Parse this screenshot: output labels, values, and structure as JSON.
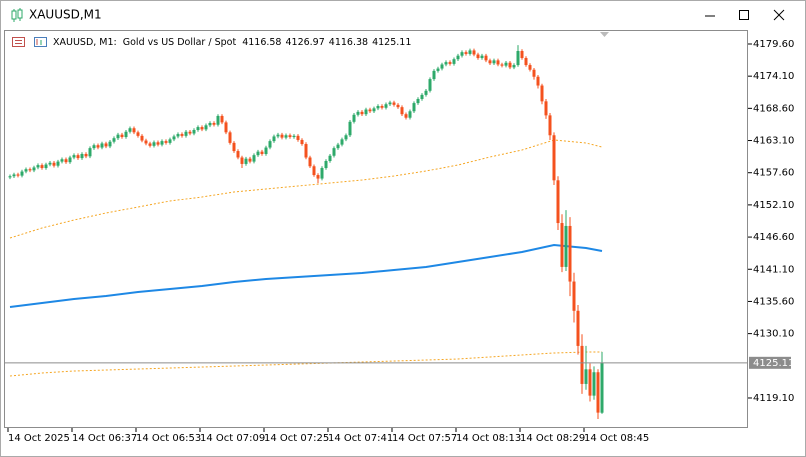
{
  "window": {
    "title": "XAUUSD,M1"
  },
  "chart_data": {
    "type": "candlestick",
    "symbol": "XAUUSD, M1:",
    "description": "Gold vs US Dollar / Spot",
    "up_color": "#2ea96a",
    "down_color": "#f4511e",
    "price_line_color": "#8c8c8c",
    "xlim": [
      -1.5,
      184.5
    ],
    "xticks": [
      {
        "value": 0,
        "label": "14 Oct 2025"
      },
      {
        "value": 16,
        "label": "14 Oct 06:37"
      },
      {
        "value": 32,
        "label": "14 Oct 06:53"
      },
      {
        "value": 48,
        "label": "14 Oct 07:09"
      },
      {
        "value": 64,
        "label": "14 Oct 07:25"
      },
      {
        "value": 80,
        "label": "14 Oct 07:41"
      },
      {
        "value": 96,
        "label": "14 Oct 07:57"
      },
      {
        "value": 112,
        "label": "14 Oct 08:13"
      },
      {
        "value": 128,
        "label": "14 Oct 08:29"
      },
      {
        "value": 144,
        "label": "14 Oct 08:45"
      }
    ],
    "ylim": [
      4113.97,
      4181.99
    ],
    "yticks": [
      {
        "value": 4179.6,
        "label": "4179.60"
      },
      {
        "value": 4174.1,
        "label": "4174.10"
      },
      {
        "value": 4168.6,
        "label": "4168.60"
      },
      {
        "value": 4163.1,
        "label": "4163.10"
      },
      {
        "value": 4157.6,
        "label": "4157.60"
      },
      {
        "value": 4152.1,
        "label": "4152.10"
      },
      {
        "value": 4146.6,
        "label": "4146.60"
      },
      {
        "value": 4141.1,
        "label": "4141.10"
      },
      {
        "value": 4135.6,
        "label": "4135.60"
      },
      {
        "value": 4130.1,
        "label": "4130.10"
      },
      {
        "value": 4119.1,
        "label": "4119.10"
      }
    ],
    "candles": [
      [
        4156.8,
        4157.3,
        4156.5,
        4157.0
      ],
      [
        4157.0,
        4157.6,
        4156.7,
        4157.3
      ],
      [
        4157.3,
        4157.6,
        4156.8,
        4157.1
      ],
      [
        4157.1,
        4158.1,
        4156.8,
        4157.8
      ],
      [
        4157.8,
        4158.5,
        4157.5,
        4158.2
      ],
      [
        4158.2,
        4158.5,
        4157.7,
        4158.0
      ],
      [
        4158.0,
        4158.8,
        4157.7,
        4158.5
      ],
      [
        4158.5,
        4159.2,
        4158.2,
        4158.9
      ],
      [
        4158.9,
        4159.2,
        4158.1,
        4158.4
      ],
      [
        4158.4,
        4159.3,
        4158.1,
        4159.0
      ],
      [
        4159.0,
        4159.6,
        4158.7,
        4159.3
      ],
      [
        4159.3,
        4159.6,
        4158.5,
        4158.8
      ],
      [
        4158.8,
        4159.8,
        4158.5,
        4159.5
      ],
      [
        4159.5,
        4160.2,
        4159.2,
        4159.9
      ],
      [
        4159.9,
        4160.2,
        4159.1,
        4159.4
      ],
      [
        4159.4,
        4160.5,
        4159.1,
        4160.2
      ],
      [
        4160.2,
        4160.9,
        4159.9,
        4160.6
      ],
      [
        4160.6,
        4160.9,
        4159.8,
        4160.1
      ],
      [
        4160.1,
        4161.1,
        4159.8,
        4160.8
      ],
      [
        4160.8,
        4161.1,
        4160.1,
        4160.4
      ],
      [
        4160.4,
        4162.1,
        4160.1,
        4161.8
      ],
      [
        4161.8,
        4162.6,
        4161.5,
        4162.3
      ],
      [
        4162.3,
        4162.6,
        4161.6,
        4161.9
      ],
      [
        4161.9,
        4162.9,
        4161.6,
        4162.6
      ],
      [
        4162.6,
        4162.9,
        4161.8,
        4162.1
      ],
      [
        4162.1,
        4163.2,
        4161.8,
        4162.9
      ],
      [
        4162.9,
        4163.8,
        4162.6,
        4163.5
      ],
      [
        4163.5,
        4164.4,
        4163.2,
        4164.1
      ],
      [
        4164.1,
        4164.4,
        4163.4,
        4163.7
      ],
      [
        4163.7,
        4164.9,
        4163.4,
        4164.6
      ],
      [
        4164.6,
        4165.5,
        4164.3,
        4165.2
      ],
      [
        4165.2,
        4165.5,
        4164.2,
        4164.5
      ],
      [
        4164.5,
        4164.8,
        4163.6,
        4163.9
      ],
      [
        4163.9,
        4164.2,
        4162.8,
        4163.1
      ],
      [
        4163.1,
        4163.4,
        4162.3,
        4162.6
      ],
      [
        4162.6,
        4162.9,
        4161.9,
        4162.2
      ],
      [
        4162.2,
        4163.1,
        4161.9,
        4162.8
      ],
      [
        4162.8,
        4163.1,
        4162.1,
        4162.4
      ],
      [
        4162.4,
        4163.3,
        4162.1,
        4163.0
      ],
      [
        4163.0,
        4163.3,
        4162.4,
        4162.7
      ],
      [
        4162.7,
        4163.6,
        4162.4,
        4163.3
      ],
      [
        4163.3,
        4164.1,
        4163.0,
        4163.8
      ],
      [
        4163.8,
        4164.5,
        4163.5,
        4164.2
      ],
      [
        4164.2,
        4164.5,
        4163.6,
        4163.9
      ],
      [
        4163.9,
        4164.9,
        4163.6,
        4164.6
      ],
      [
        4164.6,
        4164.9,
        4164.0,
        4164.3
      ],
      [
        4164.3,
        4165.2,
        4164.0,
        4164.9
      ],
      [
        4164.9,
        4165.7,
        4164.6,
        4165.4
      ],
      [
        4165.4,
        4165.7,
        4164.7,
        4165.0
      ],
      [
        4165.0,
        4166.0,
        4164.7,
        4165.7
      ],
      [
        4165.7,
        4166.4,
        4165.4,
        4166.1
      ],
      [
        4166.1,
        4166.4,
        4165.5,
        4165.8
      ],
      [
        4165.8,
        4167.6,
        4165.5,
        4167.3
      ],
      [
        4167.3,
        4167.6,
        4165.9,
        4166.2
      ],
      [
        4166.2,
        4166.5,
        4164.2,
        4164.5
      ],
      [
        4164.5,
        4164.8,
        4162.4,
        4162.7
      ],
      [
        4162.7,
        4163.0,
        4161.0,
        4161.3
      ],
      [
        4161.3,
        4161.6,
        4159.9,
        4160.2
      ],
      [
        4160.2,
        4160.5,
        4158.4,
        4159.1
      ],
      [
        4159.1,
        4160.3,
        4158.8,
        4160.0
      ],
      [
        4160.0,
        4160.3,
        4159.2,
        4159.5
      ],
      [
        4159.5,
        4160.9,
        4159.2,
        4160.6
      ],
      [
        4160.6,
        4161.5,
        4160.3,
        4161.2
      ],
      [
        4161.2,
        4161.5,
        4160.5,
        4160.8
      ],
      [
        4160.8,
        4162.2,
        4160.5,
        4161.9
      ],
      [
        4161.9,
        4163.3,
        4161.6,
        4163.0
      ],
      [
        4163.0,
        4164.1,
        4162.7,
        4163.8
      ],
      [
        4163.8,
        4164.4,
        4163.5,
        4164.1
      ],
      [
        4164.1,
        4164.4,
        4163.3,
        4163.6
      ],
      [
        4163.6,
        4164.3,
        4163.3,
        4164.0
      ],
      [
        4164.0,
        4164.3,
        4163.4,
        4163.7
      ],
      [
        4163.7,
        4164.2,
        4163.4,
        4163.9
      ],
      [
        4163.9,
        4164.2,
        4162.9,
        4163.2
      ],
      [
        4163.2,
        4163.5,
        4162.2,
        4162.5
      ],
      [
        4162.5,
        4162.8,
        4159.9,
        4160.2
      ],
      [
        4160.2,
        4160.5,
        4158.4,
        4158.7
      ],
      [
        4158.7,
        4159.0,
        4156.9,
        4157.2
      ],
      [
        4157.2,
        4157.5,
        4155.8,
        4156.6
      ],
      [
        4156.6,
        4158.7,
        4156.3,
        4158.4
      ],
      [
        4158.4,
        4159.9,
        4158.1,
        4159.6
      ],
      [
        4159.6,
        4160.8,
        4159.3,
        4160.5
      ],
      [
        4160.5,
        4162.1,
        4160.2,
        4161.8
      ],
      [
        4161.8,
        4162.7,
        4161.5,
        4162.4
      ],
      [
        4162.4,
        4163.6,
        4162.1,
        4163.3
      ],
      [
        4163.3,
        4164.3,
        4163.0,
        4164.0
      ],
      [
        4164.0,
        4166.6,
        4163.7,
        4166.3
      ],
      [
        4166.3,
        4167.8,
        4166.0,
        4167.5
      ],
      [
        4167.5,
        4168.3,
        4167.2,
        4168.0
      ],
      [
        4168.0,
        4168.3,
        4167.3,
        4167.6
      ],
      [
        4167.6,
        4168.7,
        4167.3,
        4168.4
      ],
      [
        4168.4,
        4168.7,
        4167.8,
        4168.1
      ],
      [
        4168.1,
        4168.9,
        4167.8,
        4168.6
      ],
      [
        4168.6,
        4169.3,
        4168.3,
        4169.0
      ],
      [
        4169.0,
        4169.3,
        4168.4,
        4168.7
      ],
      [
        4168.7,
        4169.6,
        4168.4,
        4169.3
      ],
      [
        4169.3,
        4169.9,
        4169.0,
        4169.6
      ],
      [
        4169.6,
        4169.9,
        4168.9,
        4169.2
      ],
      [
        4169.2,
        4169.5,
        4168.5,
        4168.8
      ],
      [
        4168.8,
        4169.1,
        4167.3,
        4167.6
      ],
      [
        4167.6,
        4167.9,
        4166.7,
        4167.0
      ],
      [
        4167.0,
        4168.4,
        4166.7,
        4168.1
      ],
      [
        4168.1,
        4169.8,
        4167.8,
        4169.5
      ],
      [
        4169.5,
        4170.5,
        4169.2,
        4170.2
      ],
      [
        4170.2,
        4171.2,
        4169.9,
        4170.9
      ],
      [
        4170.9,
        4171.9,
        4170.6,
        4171.6
      ],
      [
        4171.6,
        4173.9,
        4171.3,
        4173.6
      ],
      [
        4173.6,
        4175.3,
        4173.3,
        4175.0
      ],
      [
        4175.0,
        4175.7,
        4174.7,
        4175.4
      ],
      [
        4175.4,
        4176.4,
        4175.1,
        4176.1
      ],
      [
        4176.1,
        4176.8,
        4175.8,
        4176.5
      ],
      [
        4176.5,
        4176.8,
        4175.9,
        4176.2
      ],
      [
        4176.2,
        4177.3,
        4175.9,
        4177.0
      ],
      [
        4177.0,
        4177.9,
        4176.7,
        4177.6
      ],
      [
        4177.6,
        4178.5,
        4177.3,
        4178.2
      ],
      [
        4178.2,
        4178.5,
        4177.6,
        4177.9
      ],
      [
        4177.9,
        4178.8,
        4177.6,
        4178.5
      ],
      [
        4178.5,
        4178.8,
        4177.5,
        4177.8
      ],
      [
        4177.8,
        4178.1,
        4176.9,
        4177.2
      ],
      [
        4177.2,
        4177.9,
        4176.9,
        4177.6
      ],
      [
        4177.6,
        4177.9,
        4176.5,
        4176.8
      ],
      [
        4176.8,
        4177.1,
        4176.0,
        4176.3
      ],
      [
        4176.3,
        4177.1,
        4176.0,
        4176.8
      ],
      [
        4176.8,
        4177.1,
        4175.8,
        4176.1
      ],
      [
        4176.1,
        4176.4,
        4175.6,
        4175.9
      ],
      [
        4175.9,
        4176.7,
        4175.6,
        4176.4
      ],
      [
        4176.4,
        4176.7,
        4175.3,
        4175.6
      ],
      [
        4175.6,
        4176.3,
        4175.3,
        4176.0
      ],
      [
        4176.0,
        4179.4,
        4175.7,
        4178.4
      ],
      [
        4178.4,
        4178.7,
        4176.9,
        4177.2
      ],
      [
        4177.2,
        4177.5,
        4175.7,
        4176.0
      ],
      [
        4176.0,
        4176.3,
        4174.9,
        4175.2
      ],
      [
        4175.2,
        4175.5,
        4173.5,
        4174.0
      ],
      [
        4174.0,
        4174.3,
        4172.0,
        4172.5
      ],
      [
        4172.5,
        4172.8,
        4169.3,
        4169.8
      ],
      [
        4169.8,
        4170.2,
        4166.8,
        4167.4
      ],
      [
        4167.4,
        4167.8,
        4163.2,
        4164.0
      ],
      [
        4164.0,
        4164.5,
        4155.5,
        4156.3
      ],
      [
        4156.3,
        4157.0,
        4147.8,
        4149.0
      ],
      [
        4149.0,
        4150.5,
        4140.6,
        4141.5
      ],
      [
        4141.5,
        4151.2,
        4140.8,
        4148.5
      ],
      [
        4148.5,
        4150.0,
        4136.5,
        4139.0
      ],
      [
        4139.0,
        4140.5,
        4132.0,
        4134.0
      ],
      [
        4134.0,
        4135.0,
        4126.5,
        4128.0
      ],
      [
        4128.0,
        4130.0,
        4119.8,
        4121.5
      ],
      [
        4121.5,
        4128.0,
        4120.5,
        4124.0
      ],
      [
        4124.0,
        4125.0,
        4118.5,
        4119.5
      ],
      [
        4119.5,
        4124.5,
        4118.8,
        4123.5
      ],
      [
        4123.5,
        4124.0,
        4115.5,
        4116.6
      ],
      [
        4116.58,
        4126.97,
        4116.38,
        4125.11
      ]
    ],
    "line_x": [
      0,
      8,
      16,
      24,
      32,
      40,
      48,
      56,
      64,
      72,
      80,
      88,
      96,
      104,
      112,
      120,
      128,
      136,
      144,
      148
    ],
    "lines": [
      {
        "color": "#f5a623",
        "dashed": true,
        "values": [
          4146.44,
          4148.15,
          4149.52,
          4150.72,
          4151.74,
          4152.77,
          4153.45,
          4154.31,
          4154.82,
          4155.33,
          4155.84,
          4156.36,
          4157.04,
          4157.89,
          4158.92,
          4160.29,
          4161.48,
          4163.19,
          4162.68,
          4162.0
        ]
      },
      {
        "color": "#1e88e5",
        "dashed": false,
        "values": [
          4134.65,
          4135.33,
          4136.02,
          4136.53,
          4137.21,
          4137.73,
          4138.24,
          4138.92,
          4139.44,
          4139.78,
          4140.12,
          4140.46,
          4140.97,
          4141.49,
          4142.34,
          4143.2,
          4144.05,
          4145.25,
          4144.73,
          4144.22
        ]
      },
      {
        "color": "#f5a623",
        "dashed": true,
        "values": [
          4122.86,
          4123.37,
          4123.71,
          4123.88,
          4124.05,
          4124.22,
          4124.4,
          4124.57,
          4124.74,
          4124.91,
          4125.08,
          4125.25,
          4125.42,
          4125.59,
          4125.76,
          4126.1,
          4126.45,
          4126.79,
          4126.96,
          4126.96
        ]
      }
    ]
  }
}
